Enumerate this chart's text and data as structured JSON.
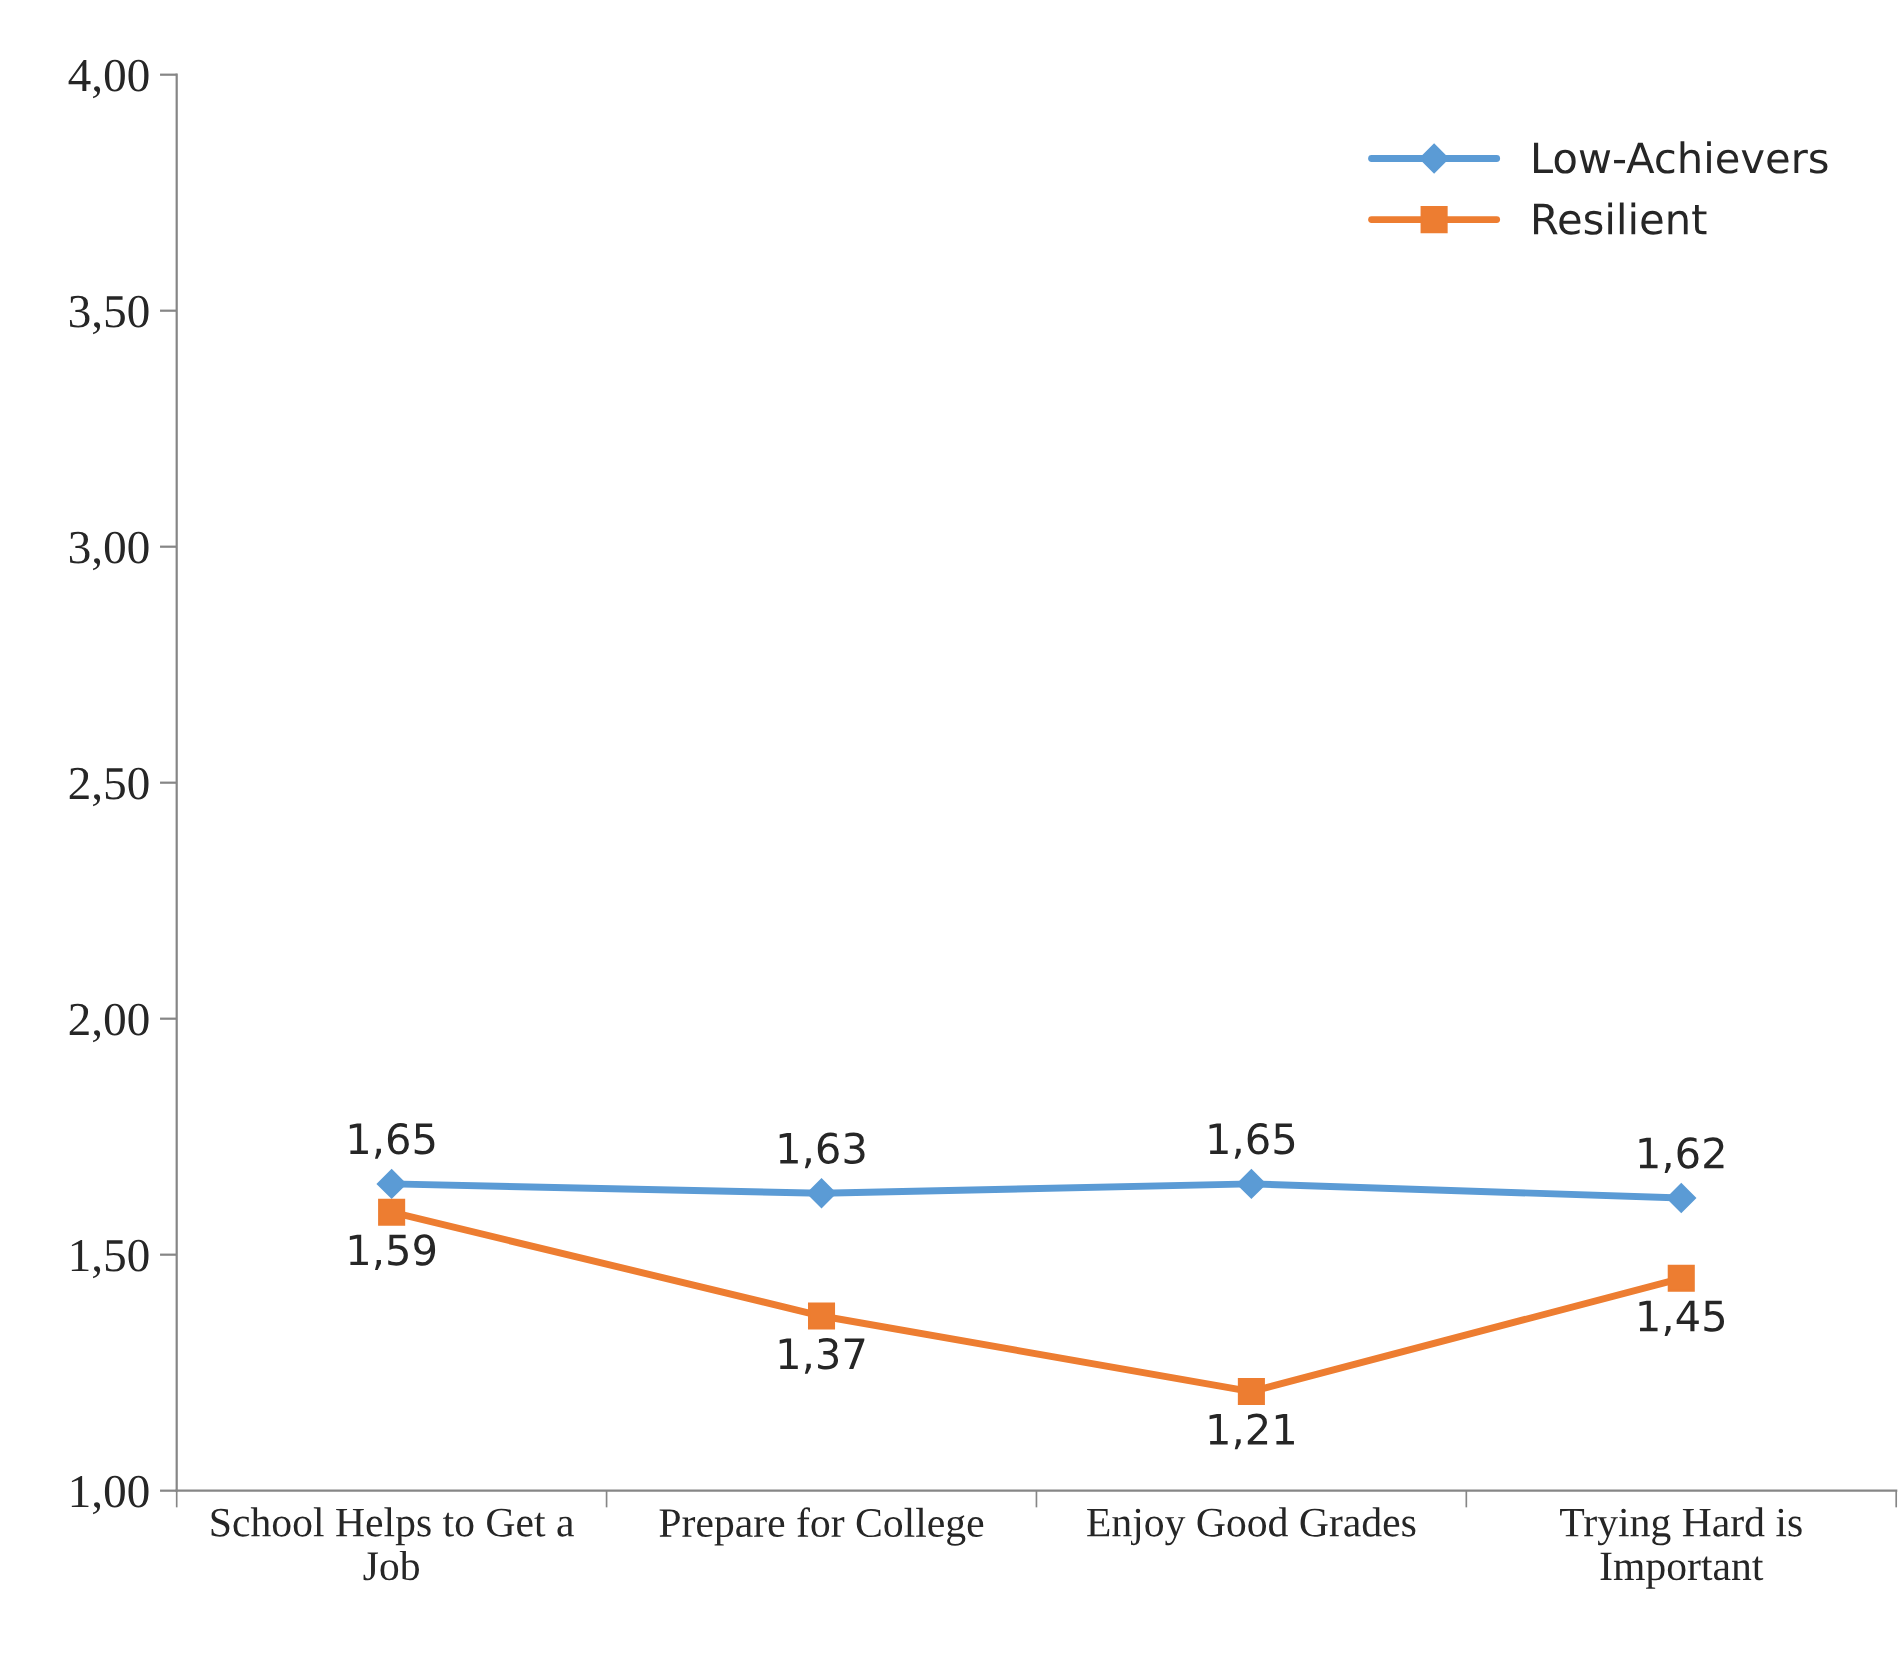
{
  "chart_data": {
    "type": "line",
    "categories": [
      "School Helps to Get a\nJob",
      "Prepare for College",
      "Enjoy Good Grades",
      "Trying Hard is\nImportant"
    ],
    "series": [
      {
        "name": "Low-Achievers",
        "color": "#5b9bd5",
        "marker": "diamond",
        "values": [
          1.65,
          1.63,
          1.65,
          1.62
        ],
        "value_labels": [
          "1,65",
          "1,63",
          "1,65",
          "1,62"
        ]
      },
      {
        "name": "Resilient",
        "color": "#ed7d31",
        "marker": "square",
        "values": [
          1.59,
          1.37,
          1.21,
          1.45
        ],
        "value_labels": [
          "1,59",
          "1,37",
          "1,21",
          "1,45"
        ]
      }
    ],
    "ylim": [
      1,
      4
    ],
    "yticks": [
      {
        "value": 1,
        "label": "1,00"
      },
      {
        "value": 1.5,
        "label": "1,50"
      },
      {
        "value": 2,
        "label": "2,00"
      },
      {
        "value": 2.5,
        "label": "2,50"
      },
      {
        "value": 3,
        "label": "3,00"
      },
      {
        "value": 3.5,
        "label": "3,50"
      },
      {
        "value": 4,
        "label": "4,00"
      }
    ],
    "grid": false,
    "legend": "top right",
    "line_style": "solid"
  }
}
